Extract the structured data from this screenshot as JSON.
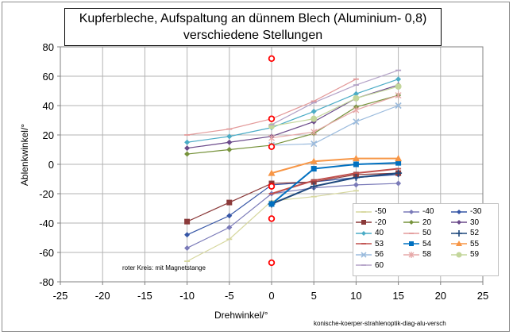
{
  "chart_data": {
    "type": "line",
    "title_line1": "Kupferbleche, Aufspaltung an dünnem Blech (Aluminium- 0,8)",
    "title_line2": "verschiedene Stellungen",
    "xlabel": "Drehwinkel/°",
    "ylabel": "Ablenkwinkel/°",
    "xlim": [
      -25,
      25
    ],
    "ylim": [
      -80,
      80
    ],
    "xticks": [
      "-25",
      "-20",
      "-15",
      "-10",
      "-5",
      "0",
      "5",
      "10",
      "15",
      "20",
      "25"
    ],
    "yticks": [
      "80",
      "60",
      "40",
      "20",
      "0",
      "-20",
      "-40",
      "-60",
      "-80"
    ],
    "x": [
      -10,
      -5,
      0,
      5,
      10,
      15
    ],
    "series": [
      {
        "name": "-50",
        "color": "#d6d79e",
        "marker": "dash",
        "values": [
          -66,
          -51,
          -25,
          -22,
          -18,
          null
        ]
      },
      {
        "name": "-40",
        "color": "#7a7ab8",
        "marker": "diamond",
        "values": [
          -57,
          -43,
          -20,
          -16,
          -14,
          -13
        ]
      },
      {
        "name": "-30",
        "color": "#3656a6",
        "marker": "diamond",
        "values": [
          -48,
          -35,
          -14,
          -12,
          -9,
          -7
        ]
      },
      {
        "name": "-20",
        "color": "#8b3a3a",
        "marker": "square",
        "values": [
          -39,
          -26,
          -13,
          -12,
          -7,
          -6
        ]
      },
      {
        "name": "20",
        "color": "#77933c",
        "marker": "diamond",
        "values": [
          7,
          10,
          13,
          21,
          39,
          47
        ]
      },
      {
        "name": "30",
        "color": "#6b4a8a",
        "marker": "diamond",
        "values": [
          11,
          15,
          19,
          29,
          45,
          54
        ]
      },
      {
        "name": "40",
        "color": "#4bacc6",
        "marker": "diamond",
        "values": [
          15,
          19,
          25,
          36,
          48,
          58
        ]
      },
      {
        "name": "50",
        "color": "#e39a9a",
        "marker": "dash",
        "values": [
          20,
          24,
          31,
          43,
          58,
          null
        ]
      },
      {
        "name": "52",
        "color": "#1f497d",
        "marker": "plus",
        "values": [
          null,
          null,
          -27,
          -15,
          -9,
          -6
        ]
      },
      {
        "name": "53",
        "color": "#c0504d",
        "marker": "dash",
        "values": [
          null,
          null,
          -20,
          -11,
          -6,
          -3
        ]
      },
      {
        "name": "54",
        "color": "#0070c0",
        "marker": "square",
        "values": [
          null,
          null,
          -27,
          -3,
          0,
          1
        ]
      },
      {
        "name": "55",
        "color": "#f79646",
        "marker": "triangle",
        "values": [
          null,
          null,
          -6,
          2,
          4,
          4
        ]
      },
      {
        "name": "56",
        "color": "#9bbbdd",
        "marker": "x",
        "values": [
          null,
          null,
          13,
          14,
          29,
          40
        ]
      },
      {
        "name": "58",
        "color": "#e6a8a8",
        "marker": "star",
        "values": [
          null,
          null,
          18,
          22,
          37,
          47
        ]
      },
      {
        "name": "59",
        "color": "#c3d69b",
        "marker": "circle",
        "values": [
          null,
          null,
          26,
          31,
          45,
          53
        ]
      },
      {
        "name": "60",
        "color": "#b3a2c7",
        "marker": "dash",
        "values": [
          null,
          null,
          27,
          42,
          54,
          64
        ]
      }
    ],
    "red_circles": {
      "x": 0,
      "values": [
        72,
        31,
        12,
        -15,
        -37,
        -67
      ],
      "color": "#ff0000"
    },
    "annotation": "roter Kreis: mit Magnetstange",
    "credit": "konische-koerper-strahlenoptik-diag-alu-versch",
    "grid": true,
    "legend_position": "bottom-right"
  }
}
